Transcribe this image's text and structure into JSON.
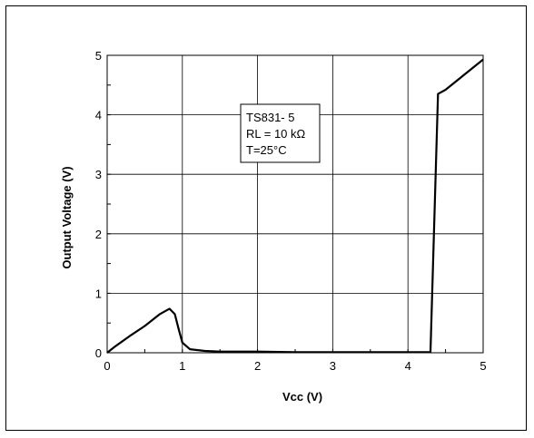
{
  "chart_data": {
    "type": "line",
    "title": "",
    "xlabel": "Vcc (V)",
    "ylabel": "Output Voltage (V)",
    "xlim": [
      0,
      5
    ],
    "ylim": [
      0,
      5
    ],
    "x_ticks": [
      "0",
      "1",
      "2",
      "3",
      "4",
      "5"
    ],
    "y_ticks": [
      "0",
      "1",
      "2",
      "3",
      "4",
      "5"
    ],
    "grid": true,
    "annotation": [
      "TS831- 5",
      "RL = 10 kΩ",
      "T=25°C"
    ],
    "series": [
      {
        "color": "#000000",
        "points": [
          [
            0,
            0
          ],
          [
            0.1,
            0.1
          ],
          [
            0.3,
            0.28
          ],
          [
            0.5,
            0.45
          ],
          [
            0.7,
            0.65
          ],
          [
            0.8,
            0.72
          ],
          [
            0.83,
            0.74
          ],
          [
            0.9,
            0.65
          ],
          [
            0.95,
            0.4
          ],
          [
            1.0,
            0.17
          ],
          [
            1.1,
            0.06
          ],
          [
            1.3,
            0.03
          ],
          [
            1.5,
            0.02
          ],
          [
            2.0,
            0.02
          ],
          [
            2.5,
            0.01
          ],
          [
            3.0,
            0.01
          ],
          [
            4.0,
            0.01
          ],
          [
            4.3,
            0.01
          ],
          [
            4.4,
            4.35
          ],
          [
            4.5,
            4.42
          ],
          [
            5.0,
            4.93
          ]
        ]
      }
    ]
  }
}
